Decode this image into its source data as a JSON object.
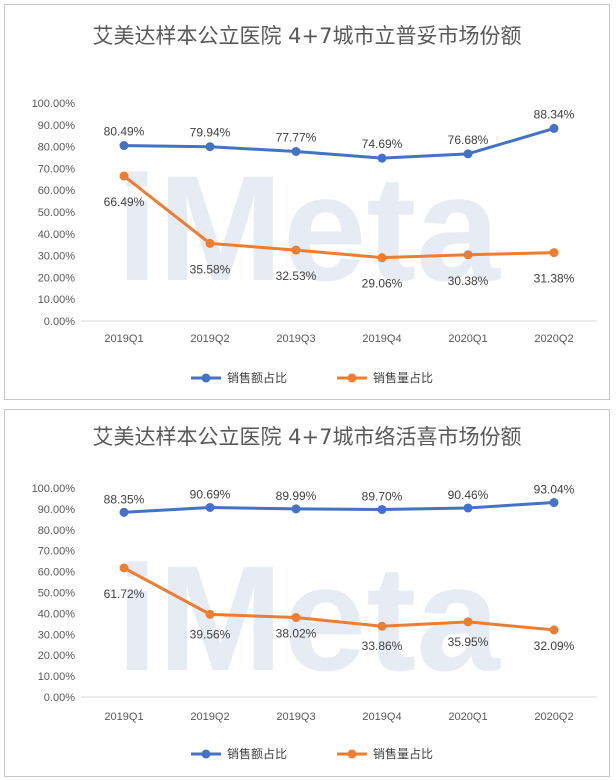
{
  "chart_data": [
    {
      "type": "line",
      "title": "艾美达样本公立医院 4+7城市立普妥市场份额",
      "categories": [
        "2019Q1",
        "2019Q2",
        "2019Q3",
        "2019Q4",
        "2020Q1",
        "2020Q2"
      ],
      "ylim": [
        0,
        100
      ],
      "yticks": [
        "0.00%",
        "10.00%",
        "20.00%",
        "30.00%",
        "40.00%",
        "50.00%",
        "60.00%",
        "70.00%",
        "80.00%",
        "90.00%",
        "100.00%"
      ],
      "legend_position": "bottom",
      "series": [
        {
          "name": "销售额占比",
          "color": "#4472c4",
          "values": [
            80.49,
            79.94,
            77.77,
            74.69,
            76.68,
            88.34
          ],
          "labels": [
            "80.49%",
            "79.94%",
            "77.77%",
            "74.69%",
            "76.68%",
            "88.34%"
          ]
        },
        {
          "name": "销售量占比",
          "color": "#ed7d31",
          "values": [
            66.49,
            35.58,
            32.53,
            29.06,
            30.38,
            31.38
          ],
          "labels": [
            "66.49%",
            "35.58%",
            "32.53%",
            "29.06%",
            "30.38%",
            "31.38%"
          ]
        }
      ]
    },
    {
      "type": "line",
      "title": "艾美达样本公立医院 4+7城市络活喜市场份额",
      "categories": [
        "2019Q1",
        "2019Q2",
        "2019Q3",
        "2019Q4",
        "2020Q1",
        "2020Q2"
      ],
      "ylim": [
        0,
        100
      ],
      "yticks": [
        "0.00%",
        "10.00%",
        "20.00%",
        "30.00%",
        "40.00%",
        "50.00%",
        "60.00%",
        "70.00%",
        "80.00%",
        "90.00%",
        "100.00%"
      ],
      "legend_position": "bottom",
      "series": [
        {
          "name": "销售额占比",
          "color": "#4472c4",
          "values": [
            88.35,
            90.69,
            89.99,
            89.7,
            90.46,
            93.04
          ],
          "labels": [
            "88.35%",
            "90.69%",
            "89.99%",
            "89.70%",
            "90.46%",
            "93.04%"
          ]
        },
        {
          "name": "销售量占比",
          "color": "#ed7d31",
          "values": [
            61.72,
            39.56,
            38.02,
            33.86,
            35.95,
            32.09
          ],
          "labels": [
            "61.72%",
            "39.56%",
            "38.02%",
            "33.86%",
            "35.95%",
            "32.09%"
          ]
        }
      ]
    }
  ],
  "watermark": {
    "text": "iMeta"
  }
}
